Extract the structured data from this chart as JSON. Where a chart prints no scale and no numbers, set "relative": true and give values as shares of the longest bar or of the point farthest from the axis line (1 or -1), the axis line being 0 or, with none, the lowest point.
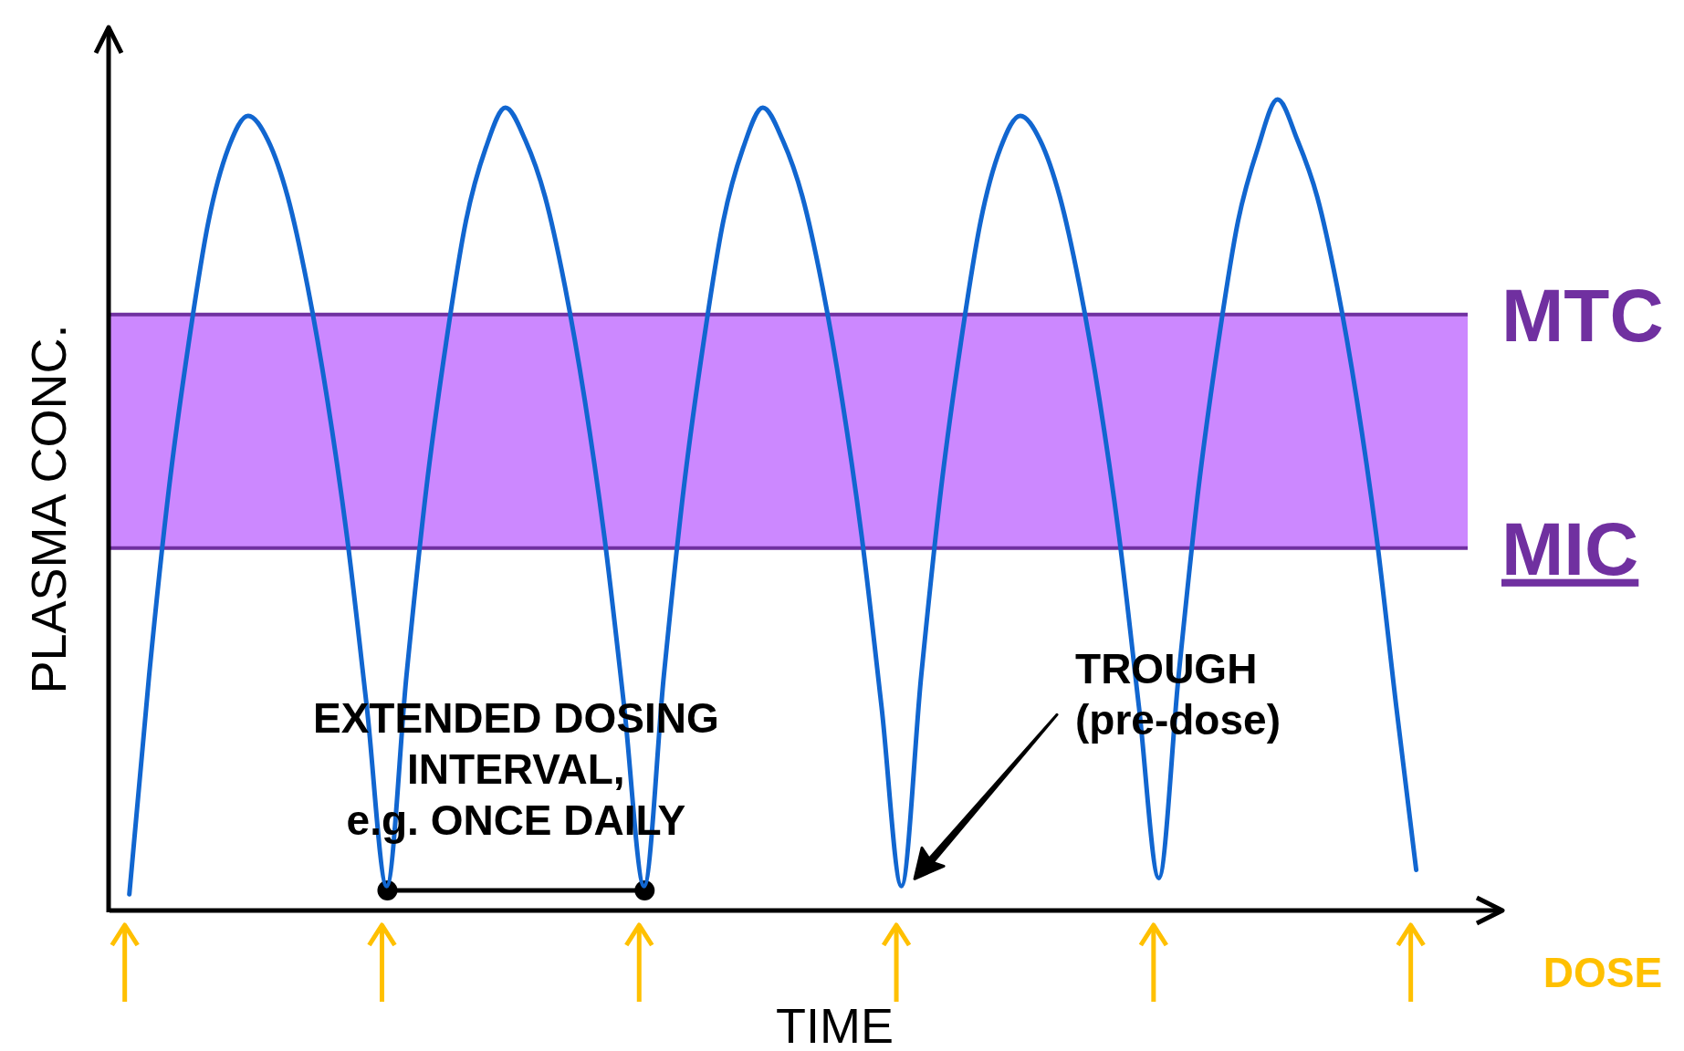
{
  "chart_data": {
    "type": "line",
    "relative": true,
    "xlabel": "TIME",
    "ylabel": "PLASMA CONC.",
    "categories": [
      null,
      null,
      null,
      null,
      null,
      null,
      null,
      null,
      null,
      null,
      null,
      null,
      null,
      null,
      null,
      null,
      null,
      null,
      null,
      null,
      null,
      null,
      null,
      null,
      null,
      null,
      null,
      null,
      null,
      null,
      null,
      null,
      null,
      null,
      null,
      null,
      null,
      null,
      null,
      null,
      null,
      null,
      null,
      null,
      null,
      null,
      null,
      null,
      null,
      null,
      null,
      null,
      null,
      null,
      null,
      null,
      null,
      null,
      null,
      null,
      null,
      null,
      null,
      null,
      null,
      null
    ],
    "series": [
      {
        "color": "#1166d0",
        "values": [
          0.02,
          0.29,
          0.52,
          0.7,
          0.85,
          0.94,
          0.98,
          0.95,
          0.88,
          0.77,
          0.63,
          0.46,
          0.25,
          0.03,
          0.29,
          0.52,
          0.7,
          0.85,
          0.94,
          0.99,
          0.95,
          0.88,
          0.77,
          0.63,
          0.46,
          0.25,
          0.03,
          0.29,
          0.52,
          0.7,
          0.85,
          0.94,
          0.99,
          0.95,
          0.88,
          0.77,
          0.63,
          0.46,
          0.25,
          0.03,
          0.29,
          0.52,
          0.7,
          0.85,
          0.94,
          0.98,
          0.95,
          0.88,
          0.77,
          0.63,
          0.46,
          0.25,
          0.04,
          0.29,
          0.52,
          0.7,
          0.85,
          0.94,
          1.0,
          0.95,
          0.88,
          0.77,
          0.63,
          0.46,
          0.25,
          0.05
        ]
      }
    ],
    "bands": [
      {
        "axis": "y",
        "from": 0.447,
        "to": 0.735,
        "color": "#cc88ff"
      }
    ],
    "ref_lines": [
      {
        "axis": "y",
        "value": 0.735,
        "label": "MTC",
        "color": "#7030a0"
      },
      {
        "axis": "y",
        "value": 0.447,
        "label": "MIC",
        "color": "#7030a0"
      }
    ],
    "annotations": [
      "EXTENDED DOSING\nINTERVAL,\ne.g. ONCE DAILY",
      "TROUGH\n(pre-dose)",
      "DOSE"
    ]
  }
}
